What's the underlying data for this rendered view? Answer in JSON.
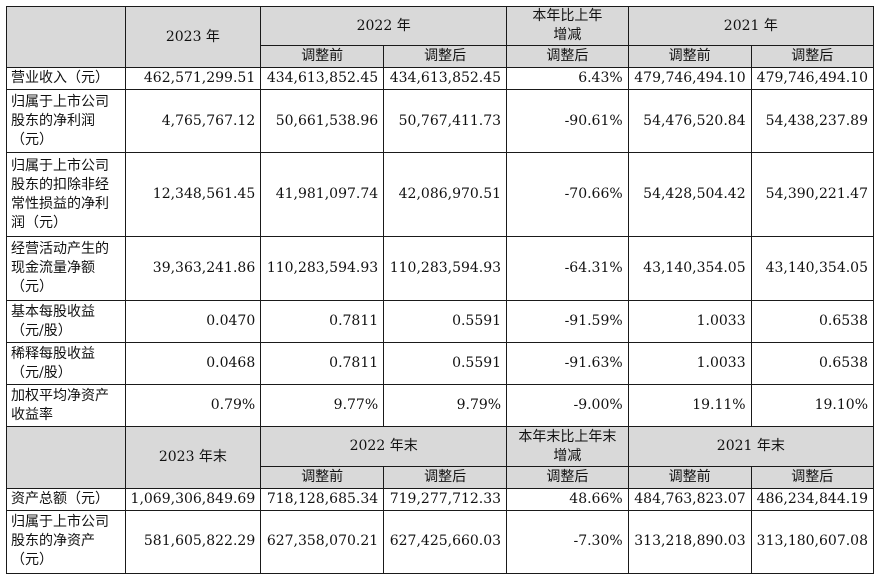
{
  "headers": {
    "top": {
      "y2023": "2023 年",
      "y2022": "2022 年",
      "change_l1": "本年比上年",
      "change_l2": "增减",
      "y2021": "2021 年"
    },
    "sub": {
      "before": "调整前",
      "after": "调整后",
      "change_after": "调整后"
    },
    "balance": {
      "y2023": "2023 年末",
      "y2022": "2022 年末",
      "change_l1": "本年末比上年末",
      "change_l2": "增减",
      "y2021": "2021 年末"
    }
  },
  "rows": [
    {
      "label": [
        "营业收入（元）"
      ],
      "v2023": "462,571,299.51",
      "v2022_before": "434,613,852.45",
      "v2022_after": "434,613,852.45",
      "change": "6.43%",
      "v2021_before": "479,746,494.10",
      "v2021_after": "479,746,494.10"
    },
    {
      "label": [
        "归属于上市公司",
        "股东的净利润",
        "（元）"
      ],
      "v2023": "4,765,767.12",
      "v2022_before": "50,661,538.96",
      "v2022_after": "50,767,411.73",
      "change": "-90.61%",
      "v2021_before": "54,476,520.84",
      "v2021_after": "54,438,237.89"
    },
    {
      "label": [
        "归属于上市公司",
        "股东的扣除非经",
        "常性损益的净利",
        "润（元）"
      ],
      "v2023": "12,348,561.45",
      "v2022_before": "41,981,097.74",
      "v2022_after": "42,086,970.51",
      "change": "-70.66%",
      "v2021_before": "54,428,504.42",
      "v2021_after": "54,390,221.47"
    },
    {
      "label": [
        "经营活动产生的",
        "现金流量净额",
        "（元）"
      ],
      "v2023": "39,363,241.86",
      "v2022_before": "110,283,594.93",
      "v2022_after": "110,283,594.93",
      "change": "-64.31%",
      "v2021_before": "43,140,354.05",
      "v2021_after": "43,140,354.05"
    },
    {
      "label": [
        "基本每股收益",
        "（元/股）"
      ],
      "v2023": "0.0470",
      "v2022_before": "0.7811",
      "v2022_after": "0.5591",
      "change": "-91.59%",
      "v2021_before": "1.0033",
      "v2021_after": "0.6538"
    },
    {
      "label": [
        "稀释每股收益",
        "（元/股）"
      ],
      "v2023": "0.0468",
      "v2022_before": "0.7811",
      "v2022_after": "0.5591",
      "change": "-91.63%",
      "v2021_before": "1.0033",
      "v2021_after": "0.6538"
    },
    {
      "label": [
        "加权平均净资产",
        "收益率"
      ],
      "v2023": "0.79%",
      "v2022_before": "9.77%",
      "v2022_after": "9.79%",
      "change": "-9.00%",
      "v2021_before": "19.11%",
      "v2021_after": "19.10%"
    }
  ],
  "balance_rows": [
    {
      "label": [
        "资产总额（元）"
      ],
      "v2023": "1,069,306,849.69",
      "v2022_before": "718,128,685.34",
      "v2022_after": "719,277,712.33",
      "change": "48.66%",
      "v2021_before": "484,763,823.07",
      "v2021_after": "486,234,844.19"
    },
    {
      "label": [
        "归属于上市公司",
        "股东的净资产",
        "（元）"
      ],
      "v2023": "581,605,822.29",
      "v2022_before": "627,358,070.21",
      "v2022_after": "627,425,660.03",
      "change": "-7.30%",
      "v2021_before": "313,218,890.03",
      "v2021_after": "313,180,607.08"
    }
  ]
}
